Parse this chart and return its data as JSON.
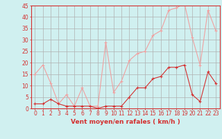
{
  "x": [
    0,
    1,
    2,
    3,
    4,
    5,
    6,
    7,
    8,
    9,
    10,
    11,
    12,
    13,
    14,
    15,
    16,
    17,
    18,
    19,
    20,
    21,
    22,
    23
  ],
  "vent_moyen": [
    2,
    2,
    4,
    2,
    1,
    1,
    1,
    1,
    0,
    1,
    1,
    1,
    5,
    9,
    9,
    13,
    14,
    18,
    18,
    19,
    6,
    3,
    16,
    11
  ],
  "en_rafales": [
    15,
    19,
    11,
    2,
    6,
    1,
    9,
    1,
    1,
    29,
    7,
    12,
    21,
    24,
    25,
    32,
    34,
    43,
    44,
    46,
    31,
    19,
    43,
    34
  ],
  "color_moyen": "#d43030",
  "color_rafales": "#f0a0a0",
  "bg_color": "#d0f0f0",
  "grid_color": "#b0b0b0",
  "xlabel": "Vent moyen/en rafales ( km/h )",
  "ylim": [
    0,
    45
  ],
  "yticks": [
    0,
    5,
    10,
    15,
    20,
    25,
    30,
    35,
    40,
    45
  ],
  "tick_fontsize": 5.5,
  "xlabel_fontsize": 6.5
}
